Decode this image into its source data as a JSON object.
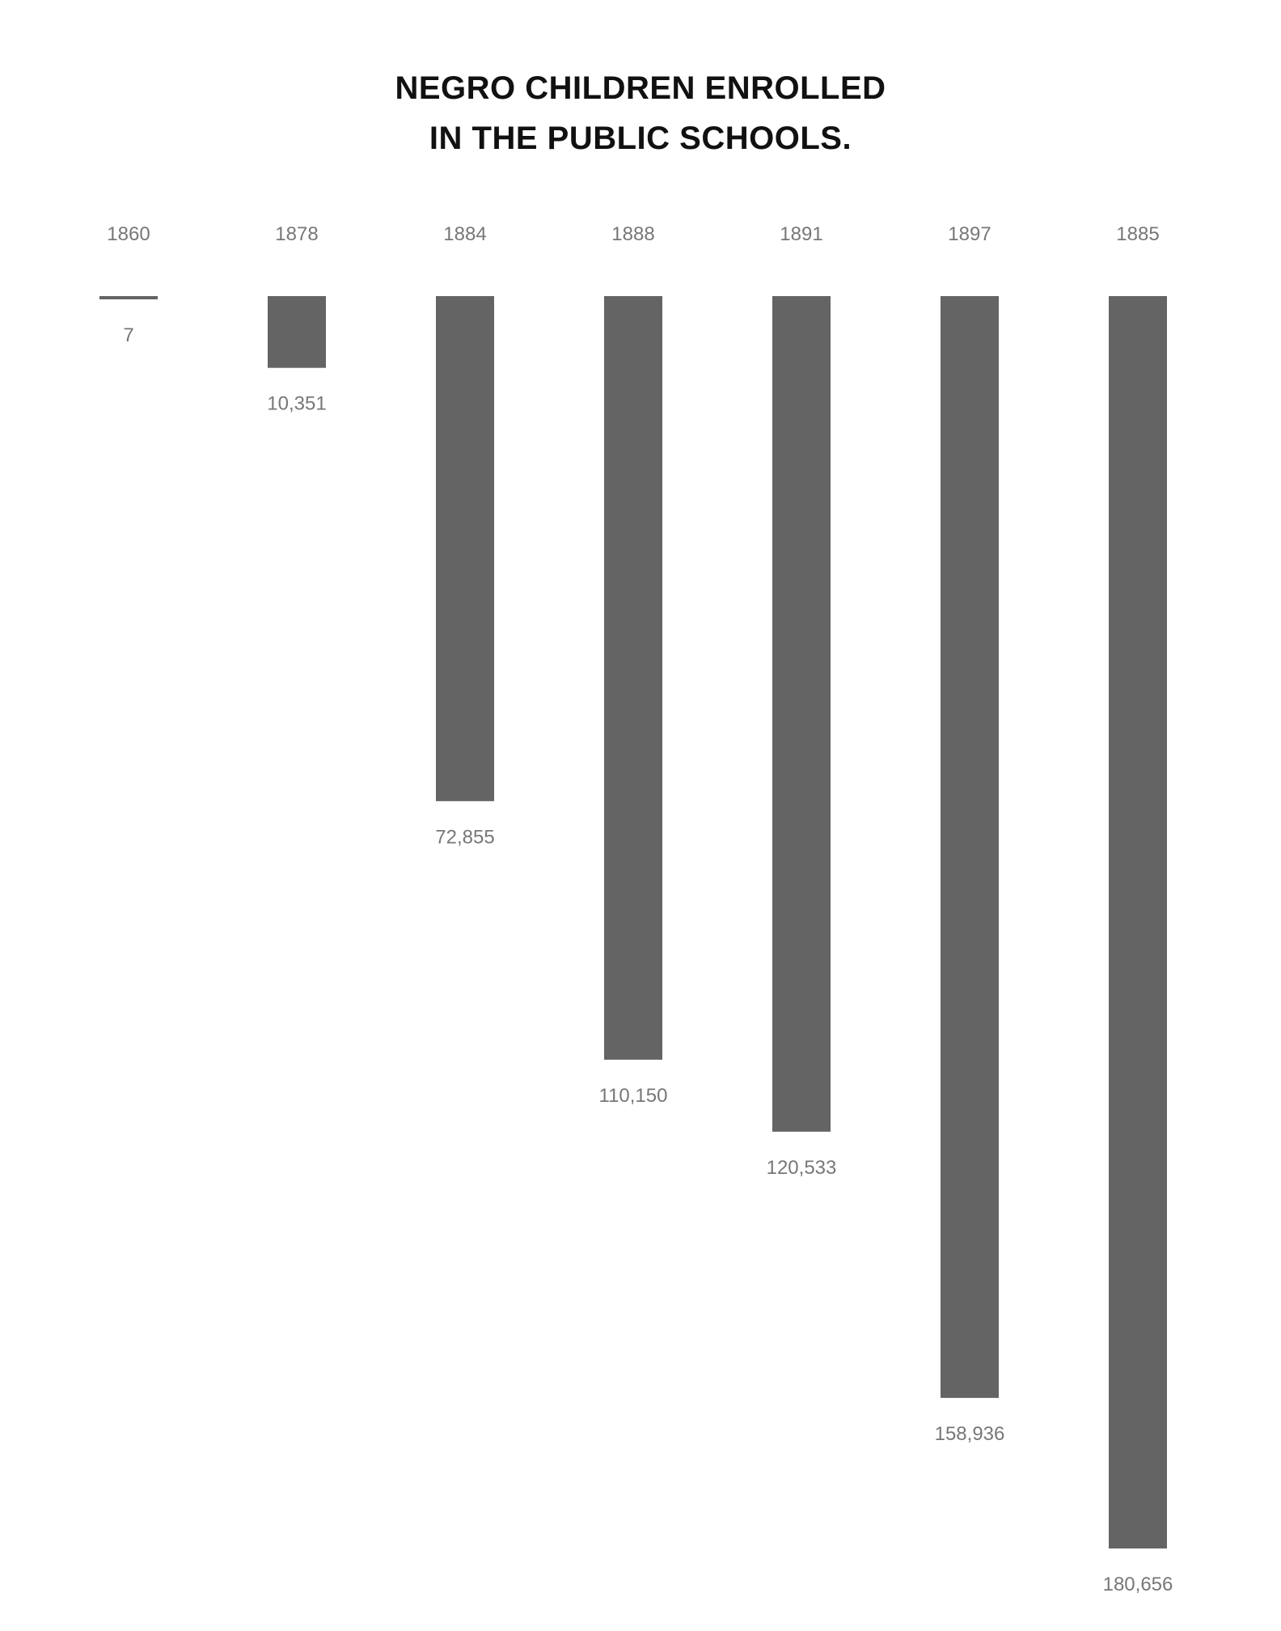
{
  "chart_data": {
    "type": "bar",
    "orientation": "vertical-downward",
    "title_lines": [
      "NEGRO CHILDREN ENROLLED",
      "IN THE PUBLIC SCHOOLS."
    ],
    "title": "NEGRO CHILDREN ENROLLED IN THE PUBLIC SCHOOLS.",
    "xlabel": "",
    "ylabel": "",
    "categories": [
      "1860",
      "1878",
      "1884",
      "1888",
      "1891",
      "1897",
      "1885"
    ],
    "values": [
      7,
      10351,
      72855,
      110150,
      120533,
      158936,
      180656
    ],
    "value_labels": [
      "7",
      "10,351",
      "72,855",
      "110,150",
      "120,533",
      "158,936",
      "180,656"
    ],
    "ylim": [
      0,
      180656
    ],
    "grid": false,
    "legend": "none",
    "colors": {
      "bar": "#646464",
      "label": "#777777",
      "title": "#111111",
      "background": "#ffffff"
    }
  }
}
